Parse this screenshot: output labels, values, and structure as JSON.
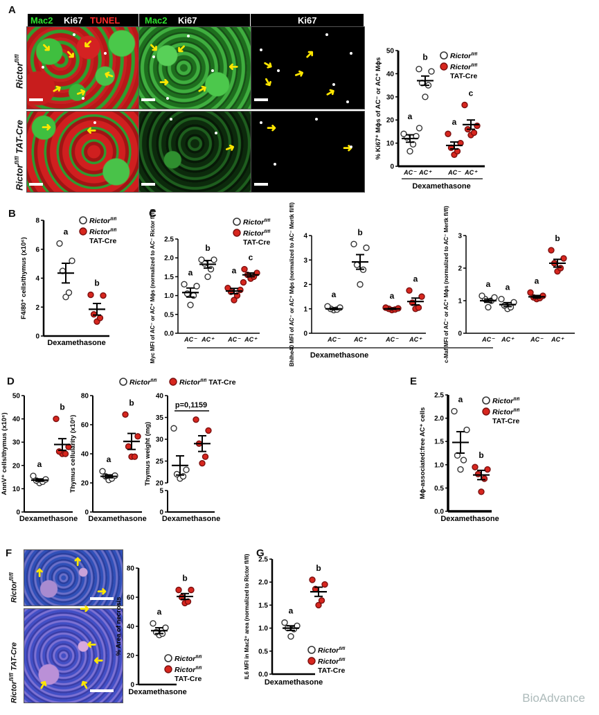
{
  "panel_letters": [
    "A",
    "B",
    "C",
    "D",
    "E",
    "F",
    "G"
  ],
  "legend": {
    "open_name": "Rictor",
    "sup": "fl/fl",
    "cre": "TAT-Cre",
    "open_color": "#ffffff",
    "red_color": "#d7261e"
  },
  "panel_a": {
    "col_labels": [
      [
        {
          "text": "Mac2",
          "color": "#2ee02e"
        },
        {
          "text": "Ki67",
          "color": "#ffffff"
        },
        {
          "text": "TUNEL",
          "color": "#ff2a2a"
        }
      ],
      [
        {
          "text": "Mac2",
          "color": "#2ee02e"
        },
        {
          "text": "Ki67",
          "color": "#ffffff"
        }
      ],
      [
        {
          "text": "Ki67",
          "color": "#ffffff"
        }
      ]
    ],
    "row_labels": [
      {
        "name": "Rictor",
        "sup": "fl/fl",
        "suffix": ""
      },
      {
        "name": "Rictor",
        "sup": "fl/fl",
        "suffix": " TAT-Cre"
      }
    ]
  },
  "panel_f": {
    "row_labels": [
      {
        "name": "Rictor",
        "sup": "fl/fl",
        "suffix": ""
      },
      {
        "name": "Rictor",
        "sup": "fl/fl",
        "suffix": " TAT-Cre"
      }
    ]
  },
  "panel_c": {
    "xlabel": "Dexamethasone"
  },
  "watermark": "BioAdvance",
  "chart_data": [
    {
      "id": "A",
      "type": "scatter",
      "ylabel": "% Ki67⁺ Mϕs of AC⁻ or AC⁺ Mϕs",
      "xlabel": "Dexamethasone",
      "ylim": [
        0,
        50
      ],
      "yticks": [
        0,
        10,
        20,
        30,
        40,
        50
      ],
      "tick_fmt": 0,
      "groups": [
        {
          "label": "AC⁻",
          "genotype": "open",
          "points": [
            6.5,
            9.5,
            12.5,
            13,
            14,
            16.5
          ],
          "mean": 12,
          "sem": 1.6,
          "letter": "a"
        },
        {
          "label": "AC⁺",
          "genotype": "open",
          "points": [
            30,
            35,
            36,
            41,
            42
          ],
          "mean": 37,
          "sem": 2,
          "letter": "b"
        },
        {
          "label": "AC⁻",
          "genotype": "red",
          "points": [
            5,
            6.5,
            8,
            10,
            14
          ],
          "mean": 9,
          "sem": 1.5,
          "letter": "a"
        },
        {
          "label": "AC⁺",
          "genotype": "red",
          "points": [
            13.5,
            14.5,
            16,
            17.5,
            26.5
          ],
          "mean": 18,
          "sem": 2,
          "letter": "c"
        }
      ]
    },
    {
      "id": "B",
      "type": "scatter",
      "ylabel": "F4/80⁺ cells/thymus (x10⁶)",
      "xlabel": "Dexamethasone",
      "ylim": [
        0,
        8
      ],
      "yticks": [
        0,
        2,
        4,
        6,
        8
      ],
      "tick_fmt": 0,
      "groups": [
        {
          "label": "",
          "genotype": "open",
          "points": [
            2.7,
            3.0,
            4.5,
            5.2,
            6.4
          ],
          "mean": 4.35,
          "sem": 0.68,
          "letter": "a"
        },
        {
          "label": "",
          "genotype": "red",
          "points": [
            1.0,
            1.25,
            1.5,
            2.8,
            2.85
          ],
          "mean": 1.85,
          "sem": 0.4,
          "letter": "b"
        }
      ]
    },
    {
      "id": "C1",
      "type": "scatter",
      "ylabel": "Myc MFI of AC⁻ or AC⁺ Mϕs (normalized to AC⁻ Rictor fl/fl)",
      "xlabel": "",
      "ylim": [
        0,
        2.5
      ],
      "yticks": [
        0,
        0.5,
        1,
        1.5,
        2,
        2.5
      ],
      "tick_fmt": 1,
      "groups": [
        {
          "label": "AC⁻",
          "genotype": "open",
          "points": [
            0.75,
            1.0,
            1.05,
            1.25,
            1.3
          ],
          "mean": 1.08,
          "sem": 0.12,
          "letter": "a"
        },
        {
          "label": "AC⁺",
          "genotype": "open",
          "points": [
            1.5,
            1.7,
            1.85,
            1.95,
            1.95
          ],
          "mean": 1.83,
          "sem": 0.1,
          "letter": "b"
        },
        {
          "label": "AC⁻",
          "genotype": "red",
          "points": [
            0.88,
            1.0,
            1.1,
            1.15,
            1.2,
            1.35
          ],
          "mean": 1.12,
          "sem": 0.07,
          "letter": "a"
        },
        {
          "label": "AC⁺",
          "genotype": "red",
          "points": [
            1.45,
            1.5,
            1.55,
            1.6,
            1.7
          ],
          "mean": 1.55,
          "sem": 0.05,
          "letter": "c"
        }
      ]
    },
    {
      "id": "C2",
      "type": "scatter",
      "ylabel": "Bhlhe40 MFI of AC⁻ or AC⁺ Mϕs (normalized to AC⁻ Mertk fl/fl)",
      "xlabel": "",
      "ylim": [
        0,
        4
      ],
      "yticks": [
        0,
        1,
        2,
        3,
        4
      ],
      "tick_fmt": 0,
      "groups": [
        {
          "label": "AC⁻",
          "genotype": "open",
          "points": [
            0.95,
            0.97,
            1.0,
            1.05,
            1.1
          ],
          "mean": 1.0,
          "sem": 0.03,
          "letter": "a"
        },
        {
          "label": "AC⁺",
          "genotype": "open",
          "points": [
            2.0,
            2.6,
            2.8,
            3.5,
            3.65
          ],
          "mean": 2.92,
          "sem": 0.3,
          "letter": "b"
        },
        {
          "label": "AC⁻",
          "genotype": "red",
          "points": [
            0.95,
            0.97,
            1.0,
            1.02,
            1.05
          ],
          "mean": 1.0,
          "sem": 0.02,
          "letter": "a"
        },
        {
          "label": "AC⁺",
          "genotype": "red",
          "points": [
            1.0,
            1.05,
            1.25,
            1.5,
            1.75
          ],
          "mean": 1.3,
          "sem": 0.14,
          "letter": "a"
        }
      ]
    },
    {
      "id": "C3",
      "type": "scatter",
      "ylabel": "c-Maf MFI of AC⁻ or AC⁺ Mϕs (normalized to AC⁻ Mertk fl/fl)",
      "xlabel": "",
      "ylim": [
        0,
        3
      ],
      "yticks": [
        0,
        1,
        2,
        3
      ],
      "tick_fmt": 0,
      "groups": [
        {
          "label": "AC⁻",
          "genotype": "open",
          "points": [
            0.8,
            1.0,
            1.05,
            1.1,
            1.15
          ],
          "mean": 1.0,
          "sem": 0.05,
          "letter": "a"
        },
        {
          "label": "AC⁺",
          "genotype": "open",
          "points": [
            0.75,
            0.8,
            0.85,
            0.95,
            1.05
          ],
          "mean": 0.88,
          "sem": 0.06,
          "letter": "a"
        },
        {
          "label": "AC⁻",
          "genotype": "red",
          "points": [
            1.05,
            1.08,
            1.1,
            1.15,
            1.25
          ],
          "mean": 1.12,
          "sem": 0.04,
          "letter": "a"
        },
        {
          "label": "AC⁺",
          "genotype": "red",
          "points": [
            1.9,
            2.0,
            2.15,
            2.3,
            2.55
          ],
          "mean": 2.15,
          "sem": 0.12,
          "letter": "b"
        }
      ]
    },
    {
      "id": "D1",
      "type": "scatter",
      "ylabel": "AnnV⁺ cells/thymus (x10⁶)",
      "xlabel": "Dexamethasone",
      "ylim": [
        0,
        50
      ],
      "yticks": [
        0,
        10,
        20,
        30,
        40,
        50
      ],
      "tick_fmt": 0,
      "groups": [
        {
          "label": "",
          "genotype": "open",
          "points": [
            12.5,
            13,
            13.5,
            14,
            15.5
          ],
          "mean": 13.7,
          "sem": 0.5,
          "letter": "a"
        },
        {
          "label": "",
          "genotype": "red",
          "points": [
            25,
            25,
            26,
            28,
            40
          ],
          "mean": 29,
          "sem": 2.5,
          "letter": "b"
        }
      ]
    },
    {
      "id": "D2",
      "type": "scatter",
      "ylabel": "Thymus cellularity (x10⁶)",
      "xlabel": "Dexamethasone",
      "ylim": [
        0,
        80
      ],
      "yticks": [
        0,
        20,
        40,
        60,
        80
      ],
      "tick_fmt": 0,
      "groups": [
        {
          "label": "",
          "genotype": "open",
          "points": [
            22,
            23,
            24.5,
            25,
            28
          ],
          "mean": 24.5,
          "sem": 1,
          "letter": "a"
        },
        {
          "label": "",
          "genotype": "red",
          "points": [
            38,
            38,
            45,
            52,
            67
          ],
          "mean": 48.5,
          "sem": 5.5,
          "letter": "b"
        }
      ]
    },
    {
      "id": "D3",
      "type": "scatter",
      "ylabel": "Thymus weight (mg)",
      "xlabel": "Dexamethasone",
      "ylim": [
        0,
        40
      ],
      "axis_break": [
        5,
        20
      ],
      "yticks": [
        0,
        5,
        20,
        25,
        30,
        35,
        40
      ],
      "tick_fmt": 0,
      "pvalue": "p=0,1159",
      "groups": [
        {
          "label": "",
          "genotype": "open",
          "points": [
            21,
            21.5,
            22,
            23,
            32.5
          ],
          "mean": 24,
          "sem": 2.2,
          "letter": ""
        },
        {
          "label": "",
          "genotype": "red",
          "points": [
            24.5,
            26,
            29,
            32,
            34.5
          ],
          "mean": 29,
          "sem": 1.8,
          "letter": ""
        }
      ]
    },
    {
      "id": "E",
      "type": "scatter",
      "ylabel": "Mϕ-associated:free AC⁺ cells",
      "xlabel": "Dexamethasone",
      "ylim": [
        0,
        2.5
      ],
      "yticks": [
        0,
        0.5,
        1,
        1.5,
        2,
        2.5
      ],
      "tick_fmt": 1,
      "groups": [
        {
          "label": "",
          "genotype": "open",
          "points": [
            0.9,
            1.1,
            1.2,
            1.75,
            2.15
          ],
          "mean": 1.48,
          "sem": 0.23,
          "letter": "a"
        },
        {
          "label": "",
          "genotype": "red",
          "points": [
            0.42,
            0.7,
            0.8,
            0.9,
            0.95
          ],
          "mean": 0.78,
          "sem": 0.1,
          "letter": "b"
        }
      ]
    },
    {
      "id": "F",
      "type": "scatter",
      "ylabel": "% Area of necrosis",
      "xlabel": "Dexamethasone",
      "ylim": [
        0,
        80
      ],
      "yticks": [
        0,
        20,
        40,
        60,
        80
      ],
      "tick_fmt": 0,
      "groups": [
        {
          "label": "",
          "genotype": "open",
          "points": [
            34,
            35,
            36,
            39,
            42
          ],
          "mean": 37,
          "sem": 2,
          "letter": "a"
        },
        {
          "label": "",
          "genotype": "red",
          "points": [
            56,
            57,
            60,
            65,
            65
          ],
          "mean": 60.5,
          "sem": 2,
          "letter": "b"
        }
      ]
    },
    {
      "id": "G",
      "type": "scatter",
      "ylabel": "IL6 MFI in Mac2⁺ area (normalized to Rictor fl/fl)",
      "xlabel": "Dexamethasone",
      "ylim": [
        0,
        2.5
      ],
      "yticks": [
        0,
        0.5,
        1,
        1.5,
        2,
        2.5
      ],
      "tick_fmt": 1,
      "groups": [
        {
          "label": "",
          "genotype": "open",
          "points": [
            0.82,
            0.98,
            1.0,
            1.05,
            1.12
          ],
          "mean": 1.0,
          "sem": 0.05,
          "letter": "a"
        },
        {
          "label": "",
          "genotype": "red",
          "points": [
            1.5,
            1.6,
            1.85,
            1.95,
            2.05
          ],
          "mean": 1.79,
          "sem": 0.1,
          "letter": "b"
        }
      ]
    }
  ]
}
